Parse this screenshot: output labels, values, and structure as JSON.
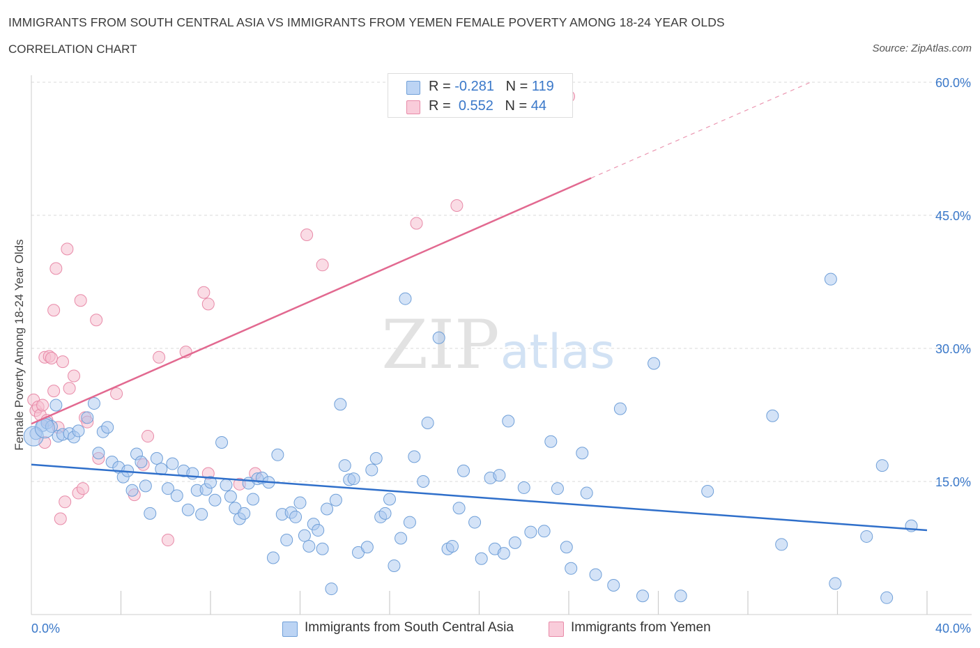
{
  "header": {
    "title": "IMMIGRANTS FROM SOUTH CENTRAL ASIA VS IMMIGRANTS FROM YEMEN FEMALE POVERTY AMONG 18-24 YEAR OLDS",
    "subtitle": "CORRELATION CHART",
    "source": "Source: ZipAtlas.com"
  },
  "watermark": {
    "zip": "ZIP",
    "atlas": "atlas"
  },
  "legend": {
    "rows": [
      {
        "r_label": "R =",
        "r_value": "-0.281",
        "n_label": "N =",
        "n_value": "119"
      },
      {
        "r_label": "R =",
        "r_value": "0.552",
        "n_label": "N =",
        "n_value": "44"
      }
    ]
  },
  "colors": {
    "blue_fill": "#aac8f0",
    "blue_stroke": "#6f9fd8",
    "blue_line": "#2f6fca",
    "pink_fill": "#f6bfd0",
    "pink_stroke": "#e88aa8",
    "pink_line": "#e26990",
    "axis_text": "#3a78c9",
    "grid": "#d8d8d8"
  },
  "chart_data": {
    "type": "scatter",
    "title": "IMMIGRANTS FROM SOUTH CENTRAL ASIA VS IMMIGRANTS FROM YEMEN FEMALE POVERTY AMONG 18-24 YEAR OLDS",
    "ylabel": "Female Poverty Among 18-24 Year Olds",
    "xlabel": "",
    "xlim": [
      0,
      40
    ],
    "ylim": [
      0,
      60
    ],
    "x_tick_labels": [
      "0.0%",
      "40.0%"
    ],
    "y_tick_labels": [
      "15.0%",
      "30.0%",
      "45.0%",
      "60.0%"
    ],
    "y_ticks": [
      15,
      30,
      45,
      60
    ],
    "grid": true,
    "legend_position": "bottom",
    "series": [
      {
        "name": "Immigrants from South Central Asia",
        "stats": {
          "R": -0.281,
          "N": 119
        },
        "trend": {
          "x0": 0,
          "y0": 16.9,
          "x1": 40,
          "y1": 9.5
        },
        "points": [
          [
            0.2,
            20.4
          ],
          [
            0.5,
            21.3
          ],
          [
            0.7,
            21.6
          ],
          [
            0.9,
            21.2
          ],
          [
            1.1,
            23.6
          ],
          [
            1.2,
            20.1
          ],
          [
            1.4,
            20.3
          ],
          [
            1.7,
            20.4
          ],
          [
            1.9,
            20.0
          ],
          [
            2.1,
            20.7
          ],
          [
            2.5,
            22.2
          ],
          [
            2.8,
            23.8
          ],
          [
            3.0,
            18.2
          ],
          [
            3.2,
            20.6
          ],
          [
            3.4,
            21.1
          ],
          [
            3.6,
            17.2
          ],
          [
            3.9,
            16.6
          ],
          [
            4.1,
            15.5
          ],
          [
            4.3,
            16.2
          ],
          [
            4.5,
            14.0
          ],
          [
            4.7,
            18.1
          ],
          [
            4.9,
            17.2
          ],
          [
            5.1,
            14.5
          ],
          [
            5.3,
            11.4
          ],
          [
            5.6,
            17.6
          ],
          [
            5.8,
            16.4
          ],
          [
            6.1,
            14.2
          ],
          [
            6.3,
            17.0
          ],
          [
            6.5,
            13.4
          ],
          [
            6.8,
            16.2
          ],
          [
            7.0,
            11.8
          ],
          [
            7.2,
            15.9
          ],
          [
            7.4,
            14.0
          ],
          [
            7.6,
            11.3
          ],
          [
            7.8,
            14.1
          ],
          [
            8.0,
            14.9
          ],
          [
            8.2,
            12.9
          ],
          [
            8.5,
            19.4
          ],
          [
            8.7,
            14.6
          ],
          [
            8.9,
            13.3
          ],
          [
            9.1,
            12.0
          ],
          [
            9.3,
            10.8
          ],
          [
            9.5,
            11.4
          ],
          [
            9.7,
            14.8
          ],
          [
            9.9,
            13.0
          ],
          [
            10.1,
            15.3
          ],
          [
            10.3,
            15.4
          ],
          [
            10.6,
            14.9
          ],
          [
            10.8,
            6.4
          ],
          [
            11.0,
            18.0
          ],
          [
            11.2,
            11.3
          ],
          [
            11.4,
            8.4
          ],
          [
            11.6,
            11.5
          ],
          [
            11.8,
            11.0
          ],
          [
            12.0,
            12.6
          ],
          [
            12.2,
            8.9
          ],
          [
            12.4,
            7.7
          ],
          [
            12.6,
            10.2
          ],
          [
            12.8,
            9.5
          ],
          [
            13.0,
            7.4
          ],
          [
            13.2,
            11.9
          ],
          [
            13.4,
            2.9
          ],
          [
            13.6,
            12.9
          ],
          [
            13.8,
            23.7
          ],
          [
            14.0,
            16.8
          ],
          [
            14.2,
            15.2
          ],
          [
            14.4,
            15.3
          ],
          [
            14.6,
            7.0
          ],
          [
            15.0,
            7.6
          ],
          [
            15.2,
            16.3
          ],
          [
            15.4,
            17.6
          ],
          [
            15.6,
            11.0
          ],
          [
            15.8,
            11.4
          ],
          [
            16.0,
            13.0
          ],
          [
            16.2,
            5.5
          ],
          [
            16.5,
            8.6
          ],
          [
            16.7,
            35.6
          ],
          [
            16.9,
            10.4
          ],
          [
            17.1,
            17.8
          ],
          [
            17.5,
            15.0
          ],
          [
            17.7,
            21.6
          ],
          [
            18.2,
            31.2
          ],
          [
            18.6,
            7.4
          ],
          [
            18.8,
            7.7
          ],
          [
            19.1,
            12.0
          ],
          [
            19.3,
            16.2
          ],
          [
            19.8,
            10.4
          ],
          [
            20.1,
            6.3
          ],
          [
            20.5,
            15.4
          ],
          [
            20.7,
            7.4
          ],
          [
            20.9,
            15.7
          ],
          [
            21.1,
            6.9
          ],
          [
            21.3,
            21.8
          ],
          [
            21.6,
            8.1
          ],
          [
            22.0,
            14.3
          ],
          [
            22.3,
            9.3
          ],
          [
            22.9,
            9.4
          ],
          [
            23.2,
            19.5
          ],
          [
            23.5,
            14.2
          ],
          [
            23.9,
            7.6
          ],
          [
            24.1,
            5.2
          ],
          [
            24.6,
            18.2
          ],
          [
            24.8,
            13.7
          ],
          [
            25.2,
            4.5
          ],
          [
            26.0,
            3.3
          ],
          [
            26.3,
            23.2
          ],
          [
            27.3,
            2.1
          ],
          [
            27.8,
            28.3
          ],
          [
            29.0,
            2.1
          ],
          [
            30.2,
            13.9
          ],
          [
            33.1,
            22.4
          ],
          [
            33.5,
            7.9
          ],
          [
            35.7,
            37.8
          ],
          [
            35.9,
            3.5
          ],
          [
            37.3,
            8.8
          ],
          [
            38.0,
            16.8
          ],
          [
            38.2,
            1.9
          ],
          [
            39.3,
            10.0
          ]
        ],
        "large_points": [
          [
            0.1,
            20.1
          ],
          [
            0.6,
            21.0
          ]
        ]
      },
      {
        "name": "Immigrants from Yemen",
        "stats": {
          "R": 0.552,
          "N": 44
        },
        "trend": {
          "x0": 0,
          "y0": 21.5,
          "x1": 25,
          "y1": 49.2
        },
        "trend_dashed": {
          "x0": 25,
          "y0": 49.2,
          "x1": 34.8,
          "y1": 60.0
        },
        "points": [
          [
            0.1,
            24.2
          ],
          [
            0.2,
            23.0
          ],
          [
            0.3,
            23.4
          ],
          [
            0.4,
            22.5
          ],
          [
            0.5,
            23.6
          ],
          [
            0.6,
            29.0
          ],
          [
            0.6,
            19.4
          ],
          [
            0.7,
            21.9
          ],
          [
            0.8,
            29.1
          ],
          [
            0.9,
            28.9
          ],
          [
            1.0,
            34.3
          ],
          [
            1.0,
            25.2
          ],
          [
            1.1,
            39.0
          ],
          [
            1.2,
            21.1
          ],
          [
            1.3,
            10.8
          ],
          [
            1.4,
            28.5
          ],
          [
            1.5,
            12.7
          ],
          [
            1.6,
            41.2
          ],
          [
            1.7,
            25.5
          ],
          [
            1.9,
            26.9
          ],
          [
            2.1,
            13.7
          ],
          [
            2.2,
            35.4
          ],
          [
            2.3,
            14.2
          ],
          [
            2.4,
            22.2
          ],
          [
            2.5,
            21.7
          ],
          [
            2.9,
            33.2
          ],
          [
            3.0,
            17.6
          ],
          [
            3.8,
            24.9
          ],
          [
            4.6,
            13.5
          ],
          [
            5.0,
            16.9
          ],
          [
            5.2,
            20.1
          ],
          [
            5.7,
            29.0
          ],
          [
            6.1,
            8.4
          ],
          [
            6.9,
            29.6
          ],
          [
            7.7,
            36.3
          ],
          [
            7.9,
            15.9
          ],
          [
            7.9,
            35.0
          ],
          [
            9.3,
            14.7
          ],
          [
            10.0,
            15.9
          ],
          [
            12.3,
            42.8
          ],
          [
            13.0,
            39.4
          ],
          [
            17.2,
            44.1
          ],
          [
            19.0,
            46.1
          ],
          [
            24.0,
            58.4
          ]
        ]
      }
    ]
  },
  "bottom_legend": {
    "items": [
      {
        "label": "Immigrants from South Central Asia"
      },
      {
        "label": "Immigrants from Yemen"
      }
    ]
  }
}
